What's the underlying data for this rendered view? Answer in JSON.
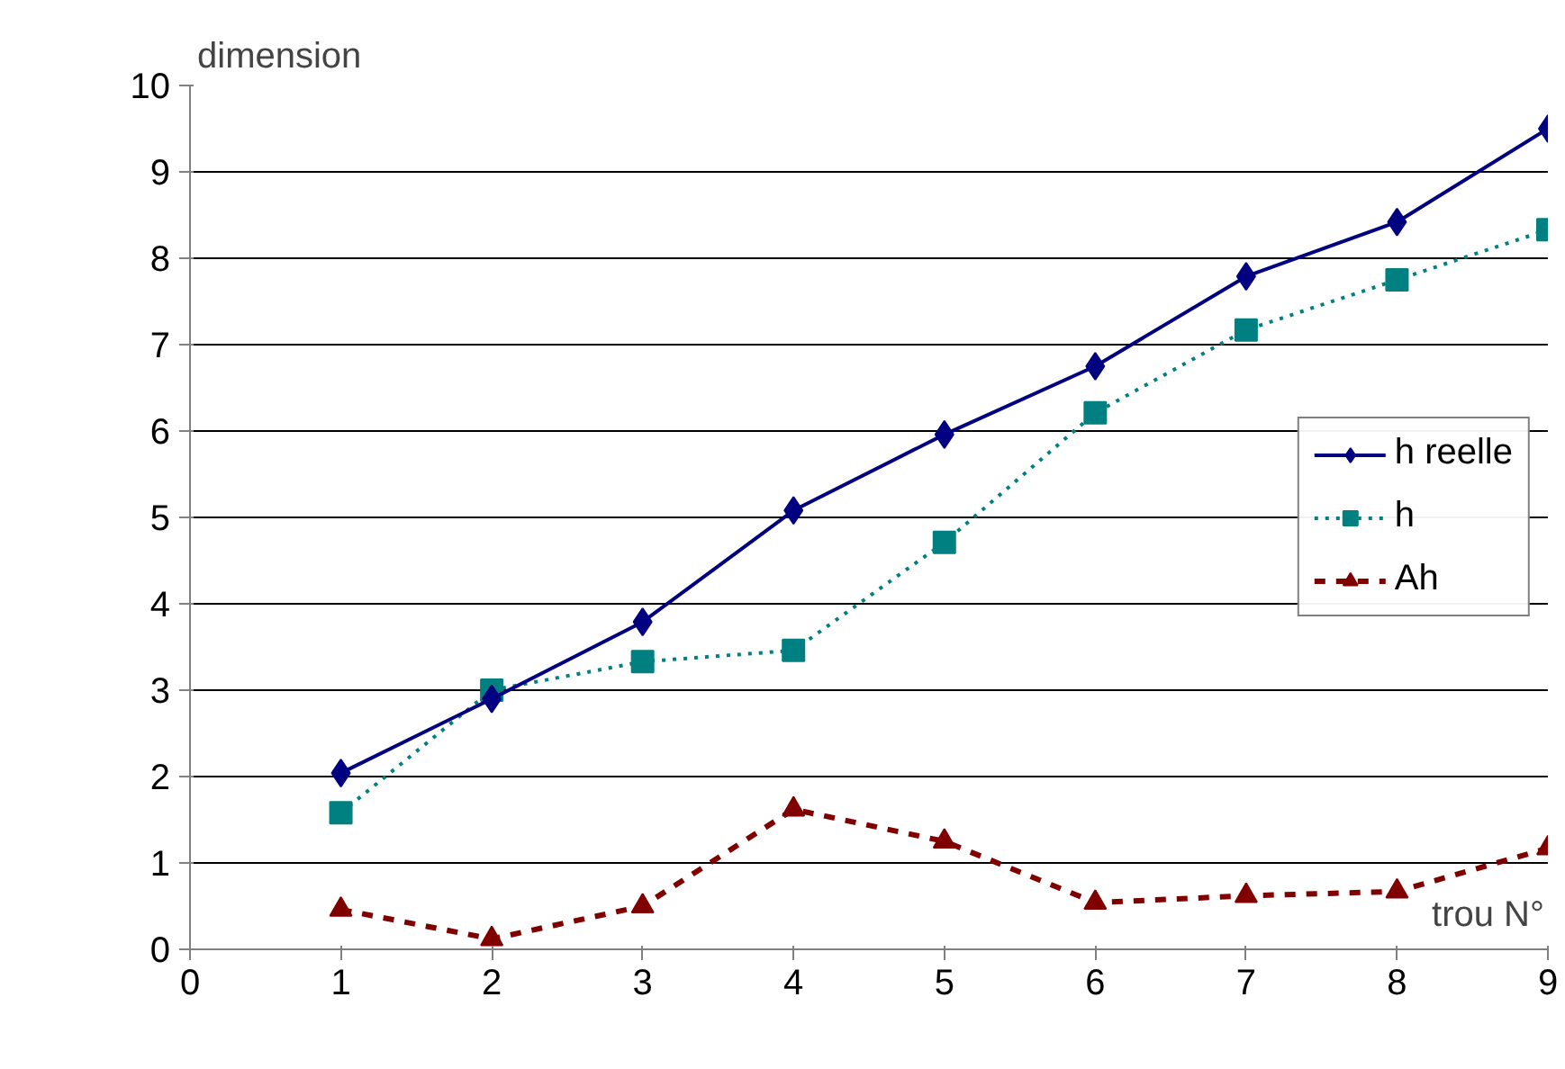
{
  "chart_data": {
    "type": "line",
    "xlabel": "trou N°",
    "ylabel": "dimension",
    "x": [
      1,
      2,
      3,
      4,
      5,
      6,
      7,
      8,
      9
    ],
    "series": [
      {
        "name": "h reelle",
        "color": "#000080",
        "marker": "diamond",
        "line_style": "solid",
        "values": [
          2.04,
          2.9,
          3.79,
          5.08,
          5.96,
          6.75,
          7.79,
          8.42,
          9.5
        ]
      },
      {
        "name": "h",
        "color": "#008080",
        "marker": "square",
        "line_style": "dotted",
        "values": [
          1.58,
          3.0,
          3.33,
          3.46,
          4.71,
          6.21,
          7.17,
          7.75,
          8.33
        ]
      },
      {
        "name": "Ah",
        "color": "#800000",
        "marker": "triangle",
        "line_style": "dashed",
        "values": [
          0.46,
          0.12,
          0.5,
          1.62,
          1.25,
          0.54,
          0.62,
          0.67,
          1.17
        ]
      }
    ],
    "xlim": [
      0,
      9
    ],
    "ylim": [
      0,
      10
    ],
    "xticks": [
      0,
      1,
      2,
      3,
      4,
      5,
      6,
      7,
      8,
      9
    ],
    "yticks": [
      0,
      1,
      2,
      3,
      4,
      5,
      6,
      7,
      8,
      9,
      10
    ],
    "grid": "y",
    "legend": "right"
  }
}
